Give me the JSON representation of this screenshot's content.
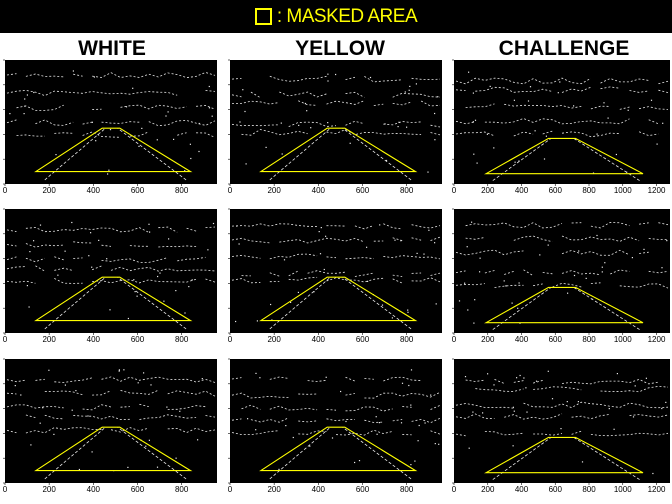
{
  "legend": {
    "symbol": "square-outline-icon",
    "text": ": MASKED AREA",
    "color": "#ffff00"
  },
  "columns": [
    {
      "label": "WHITE",
      "x_ticks": [
        "0",
        "200",
        "400",
        "600",
        "800"
      ],
      "x_max": 960
    },
    {
      "label": "YELLOW",
      "x_ticks": [
        "0",
        "200",
        "400",
        "600",
        "800"
      ],
      "x_max": 960
    },
    {
      "label": "CHALLENGE",
      "x_ticks": [
        "0",
        "200",
        "400",
        "600",
        "800",
        "1000",
        "1200"
      ],
      "x_max": 1280
    }
  ],
  "rows": 3,
  "mask_polygon": {
    "standard": [
      [
        140,
        540
      ],
      [
        440,
        330
      ],
      [
        520,
        330
      ],
      [
        840,
        540
      ]
    ],
    "challenge": [
      [
        190,
        660
      ],
      [
        560,
        455
      ],
      [
        720,
        455
      ],
      [
        1120,
        660
      ]
    ]
  },
  "image_heights": {
    "standard": 600,
    "challenge": 720
  },
  "colors": {
    "mask": "#ffff00",
    "edges": "#e8e8e8",
    "image_bg": "#000000"
  }
}
